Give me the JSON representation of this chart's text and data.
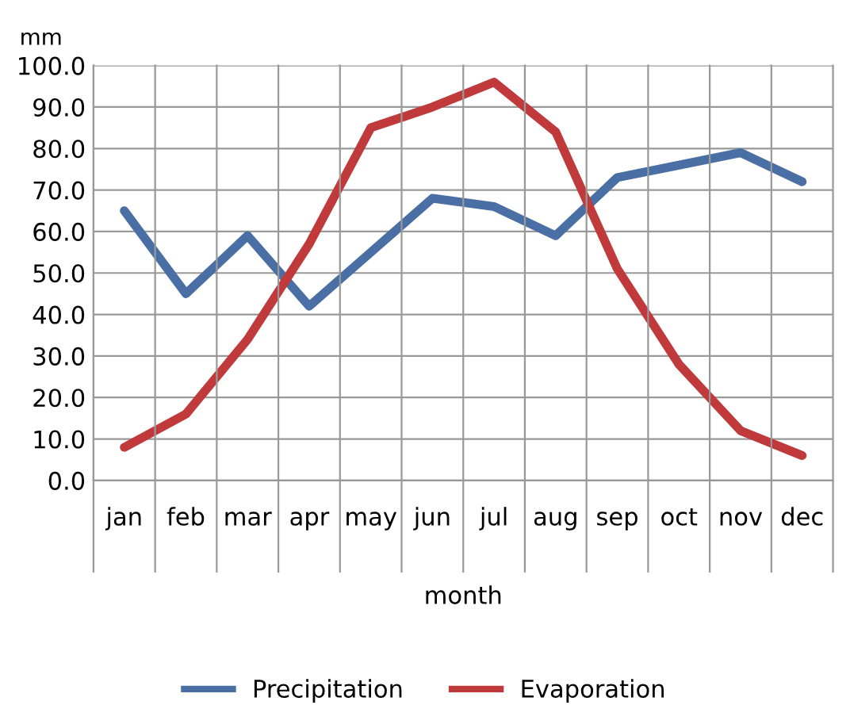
{
  "chart_data": {
    "type": "line",
    "ylabel": "mm",
    "xlabel": "month",
    "categories": [
      "jan",
      "feb",
      "mar",
      "apr",
      "may",
      "jun",
      "jul",
      "aug",
      "sep",
      "oct",
      "nov",
      "dec"
    ],
    "series": [
      {
        "name": "Precipitation",
        "color": "#4a6fa5",
        "values": [
          65,
          45,
          59,
          42,
          55,
          68,
          66,
          59,
          73,
          76,
          79,
          72
        ]
      },
      {
        "name": "Evaporation",
        "color": "#c0393b",
        "values": [
          8,
          16,
          34,
          57,
          85,
          90,
          96,
          84,
          51,
          28,
          12,
          6
        ]
      }
    ],
    "ylim": [
      0,
      100
    ],
    "yticks": [
      {
        "value": 0,
        "label": "0.0"
      },
      {
        "value": 10,
        "label": "10.0"
      },
      {
        "value": 20,
        "label": "20.0"
      },
      {
        "value": 30,
        "label": "30.0"
      },
      {
        "value": 40,
        "label": "40.0"
      },
      {
        "value": 50,
        "label": "50.0"
      },
      {
        "value": 60,
        "label": "60.0"
      },
      {
        "value": 70,
        "label": "70.0"
      },
      {
        "value": 80,
        "label": "80.0"
      },
      {
        "value": 90,
        "label": "90.0"
      },
      {
        "value": 100,
        "label": "100.0"
      }
    ],
    "grid": true,
    "legend": "bottom",
    "marker": "none",
    "line_style": "solid"
  }
}
